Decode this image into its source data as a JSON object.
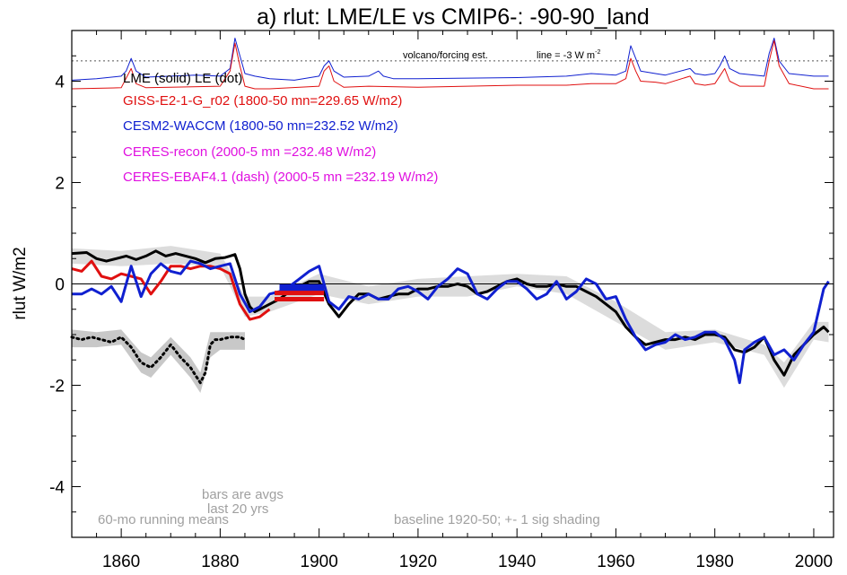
{
  "chart_data": {
    "type": "line",
    "title": "a) rlut: LME/LE vs CMIP6-: -90-90_land",
    "ylabel": "rlut W/m2",
    "xlabel": "",
    "xlim": [
      1850,
      2004
    ],
    "ylim": [
      -5,
      5
    ],
    "x_ticks": [
      1860,
      1880,
      1900,
      1920,
      1940,
      1960,
      1980,
      2000
    ],
    "y_ticks": [
      -4,
      -2,
      0,
      2,
      4
    ],
    "zero_line": 0,
    "legend": [
      {
        "text": "LME (solid)   LE (dot)",
        "color": "#000000"
      },
      {
        "text": "GISS-E2-1-G_r02 (1800-50 mn=229.65 W/m2)",
        "color": "#e01010"
      },
      {
        "text": "CESM2-WACCM (1800-50 mn=232.52 W/m2)",
        "color": "#1020d0"
      },
      {
        "text": "CERES-recon (2000-5 mn =232.48 W/m2)",
        "color": "#e010e0"
      },
      {
        "text": "CERES-EBAF4.1 (dash) (2000-5 mn =232.19 W/m2)",
        "color": "#e010e0"
      }
    ],
    "annotations": {
      "volcano": "volcano/forcing est.",
      "volcano_line": "line = -3 W m",
      "volcano_line_sup": "-2",
      "bars": "bars are avgs",
      "bars2": "last 20 yrs",
      "running": "60-mo running means",
      "baseline": "baseline 1920-50; +- 1 sig shading"
    },
    "volcano_ref_level": 4.4,
    "series": [
      {
        "name": "LME (solid)",
        "color": "#000000",
        "style": "solid",
        "x": [
          1850,
          1853,
          1855,
          1857,
          1859,
          1861,
          1863,
          1865,
          1867,
          1869,
          1871,
          1873,
          1875,
          1877,
          1879,
          1881,
          1883,
          1884,
          1885,
          1886,
          1887,
          1888,
          1890,
          1892,
          1894,
          1896,
          1898,
          1900,
          1902,
          1904,
          1906,
          1908,
          1910,
          1912,
          1914,
          1916,
          1918,
          1920,
          1922,
          1924,
          1926,
          1928,
          1930,
          1932,
          1934,
          1936,
          1938,
          1940,
          1942,
          1944,
          1946,
          1948,
          1950,
          1952,
          1954,
          1956,
          1958,
          1960,
          1962,
          1964,
          1966,
          1968,
          1970,
          1972,
          1974,
          1976,
          1978,
          1980,
          1982,
          1984,
          1986,
          1988,
          1990,
          1992,
          1994,
          1996,
          1998,
          2000,
          2002,
          2003
        ],
        "values": [
          0.6,
          0.62,
          0.5,
          0.45,
          0.5,
          0.55,
          0.48,
          0.55,
          0.65,
          0.55,
          0.6,
          0.55,
          0.5,
          0.42,
          0.5,
          0.52,
          0.58,
          0.3,
          -0.2,
          -0.45,
          -0.55,
          -0.5,
          -0.4,
          -0.3,
          -0.15,
          -0.05,
          0.05,
          0.05,
          -0.4,
          -0.65,
          -0.4,
          -0.2,
          -0.2,
          -0.3,
          -0.25,
          -0.2,
          -0.2,
          -0.1,
          -0.1,
          -0.05,
          -0.05,
          0.0,
          -0.05,
          -0.2,
          -0.15,
          -0.05,
          0.05,
          0.1,
          0.0,
          -0.05,
          -0.05,
          0.0,
          -0.05,
          -0.05,
          -0.15,
          -0.25,
          -0.4,
          -0.55,
          -0.85,
          -1.05,
          -1.2,
          -1.15,
          -1.1,
          -1.1,
          -1.05,
          -1.1,
          -1.0,
          -1.0,
          -1.05,
          -1.3,
          -1.35,
          -1.25,
          -1.05,
          -1.5,
          -1.8,
          -1.4,
          -1.2,
          -1.0,
          -0.85,
          -0.95
        ]
      },
      {
        "name": "LE (dot)",
        "color": "#000000",
        "style": "dot",
        "x": [
          1850,
          1852,
          1854,
          1856,
          1858,
          1860,
          1862,
          1864,
          1866,
          1868,
          1870,
          1872,
          1874,
          1876,
          1877,
          1878,
          1879,
          1880,
          1882,
          1884,
          1885
        ],
        "values": [
          -1.05,
          -1.1,
          -1.05,
          -1.1,
          -1.15,
          -1.05,
          -1.25,
          -1.55,
          -1.65,
          -1.45,
          -1.2,
          -1.45,
          -1.65,
          -1.95,
          -1.75,
          -1.2,
          -1.1,
          -1.1,
          -1.05,
          -1.05,
          -1.1
        ]
      },
      {
        "name": "GISS-E2-1-G_r02",
        "color": "#e01010",
        "style": "solid",
        "x": [
          1850,
          1852,
          1854,
          1856,
          1858,
          1860,
          1862,
          1864,
          1866,
          1868,
          1870,
          1872,
          1874,
          1876,
          1878,
          1880,
          1882,
          1884,
          1886,
          1888,
          1890
        ],
        "values": [
          0.3,
          0.25,
          0.45,
          0.15,
          0.1,
          0.2,
          0.15,
          0.1,
          -0.2,
          0.05,
          0.35,
          0.35,
          0.3,
          0.35,
          0.35,
          0.3,
          0.2,
          -0.4,
          -0.7,
          -0.65,
          -0.5
        ]
      },
      {
        "name": "CESM2-WACCM",
        "color": "#1020d0",
        "style": "solid",
        "x": [
          1850,
          1852,
          1854,
          1856,
          1858,
          1860,
          1862,
          1864,
          1866,
          1868,
          1870,
          1872,
          1874,
          1876,
          1878,
          1880,
          1882,
          1884,
          1886,
          1888,
          1890,
          1892,
          1894,
          1896,
          1898,
          1900,
          1902,
          1904,
          1906,
          1908,
          1910,
          1912,
          1914,
          1916,
          1918,
          1920,
          1922,
          1924,
          1926,
          1928,
          1930,
          1932,
          1934,
          1936,
          1938,
          1940,
          1942,
          1944,
          1946,
          1948,
          1950,
          1952,
          1954,
          1956,
          1958,
          1960,
          1962,
          1964,
          1966,
          1968,
          1970,
          1972,
          1974,
          1976,
          1978,
          1980,
          1982,
          1984,
          1985,
          1986,
          1988,
          1990,
          1992,
          1994,
          1996,
          1998,
          2000,
          2002,
          2003
        ],
        "values": [
          -0.2,
          -0.2,
          -0.1,
          -0.2,
          -0.05,
          -0.35,
          0.35,
          -0.25,
          0.2,
          0.4,
          0.25,
          0.2,
          0.45,
          0.4,
          0.3,
          0.35,
          0.4,
          -0.2,
          -0.55,
          -0.45,
          -0.2,
          -0.15,
          -0.05,
          0.1,
          0.25,
          0.35,
          -0.35,
          -0.5,
          -0.25,
          -0.3,
          -0.2,
          -0.3,
          -0.3,
          -0.1,
          -0.05,
          -0.15,
          -0.3,
          -0.05,
          0.1,
          0.3,
          0.2,
          -0.2,
          -0.3,
          -0.1,
          0.05,
          0.05,
          -0.1,
          -0.3,
          -0.2,
          0.05,
          -0.3,
          -0.15,
          0.1,
          0.0,
          -0.3,
          -0.25,
          -0.7,
          -1.05,
          -1.3,
          -1.2,
          -1.15,
          -1.0,
          -1.1,
          -1.05,
          -0.95,
          -0.95,
          -1.1,
          -1.5,
          -1.95,
          -1.3,
          -1.15,
          -1.05,
          -1.4,
          -1.3,
          -1.5,
          -1.2,
          -0.95,
          -0.1,
          0.05
        ]
      },
      {
        "name": "volcano/forcing est. (WACCM)",
        "color": "#1020d0",
        "style": "solid",
        "x": [
          1850,
          1855,
          1860,
          1861,
          1862,
          1863,
          1865,
          1870,
          1875,
          1880,
          1882,
          1883,
          1884,
          1885,
          1887,
          1890,
          1895,
          1900,
          1901,
          1902,
          1903,
          1905,
          1910,
          1912,
          1913,
          1915,
          1920,
          1930,
          1940,
          1950,
          1955,
          1960,
          1962,
          1963,
          1964,
          1965,
          1968,
          1970,
          1975,
          1976,
          1978,
          1980,
          1981,
          1982,
          1983,
          1985,
          1990,
          1991,
          1992,
          1993,
          1995,
          2000,
          2003
        ],
        "values": [
          4.02,
          4.05,
          4.1,
          4.2,
          4.45,
          4.2,
          4.08,
          4.1,
          4.12,
          4.1,
          4.25,
          4.85,
          4.5,
          4.15,
          4.1,
          4.05,
          4.02,
          4.1,
          4.3,
          4.4,
          4.2,
          4.08,
          4.1,
          4.2,
          4.1,
          4.05,
          4.05,
          4.06,
          4.07,
          4.1,
          4.15,
          4.12,
          4.2,
          4.7,
          4.45,
          4.2,
          4.15,
          4.12,
          4.25,
          4.15,
          4.12,
          4.15,
          4.3,
          4.5,
          4.25,
          4.15,
          4.1,
          4.55,
          4.85,
          4.4,
          4.15,
          4.1,
          4.1
        ]
      },
      {
        "name": "volcano/forcing est. (GISS)",
        "color": "#e01010",
        "style": "solid",
        "x": [
          1850,
          1860,
          1862,
          1863,
          1865,
          1870,
          1880,
          1882,
          1883,
          1884,
          1885,
          1887,
          1890,
          1900,
          1901,
          1902,
          1903,
          1905,
          1910,
          1920,
          1930,
          1940,
          1950,
          1955,
          1960,
          1962,
          1963,
          1964,
          1965,
          1968,
          1970,
          1975,
          1976,
          1978,
          1980,
          1982,
          1983,
          1985,
          1990,
          1991,
          1992,
          1993,
          1995,
          2000,
          2003
        ],
        "values": [
          3.85,
          3.87,
          4.25,
          3.95,
          3.87,
          3.88,
          3.9,
          4.2,
          4.75,
          4.3,
          3.9,
          3.85,
          3.85,
          3.9,
          4.2,
          4.3,
          4.0,
          3.88,
          3.9,
          3.88,
          3.9,
          3.92,
          3.92,
          3.95,
          3.95,
          4.05,
          4.45,
          4.2,
          4.0,
          3.98,
          3.95,
          4.1,
          3.95,
          3.92,
          3.95,
          4.25,
          4.0,
          3.9,
          3.9,
          4.4,
          4.8,
          4.3,
          3.95,
          3.85,
          3.85
        ]
      }
    ],
    "shading": [
      {
        "name": "LME sigma",
        "color": "#dcdcdc",
        "x": [
          1850,
          1860,
          1870,
          1880,
          1885,
          1890,
          1900,
          1910,
          1920,
          1930,
          1940,
          1950,
          1960,
          1970,
          1980,
          1990,
          1994,
          2000,
          2003
        ],
        "upper": [
          0.7,
          0.65,
          0.75,
          0.6,
          -0.25,
          -0.25,
          0.2,
          -0.05,
          0.1,
          0.15,
          0.2,
          0.15,
          -0.35,
          -0.95,
          -0.9,
          -1.2,
          -1.55,
          -0.75,
          -0.75
        ],
        "lower": [
          0.4,
          0.35,
          0.4,
          0.35,
          -0.65,
          -0.55,
          -0.2,
          -0.4,
          -0.25,
          -0.25,
          -0.05,
          -0.2,
          -0.75,
          -1.3,
          -1.15,
          -1.4,
          -2.05,
          -1.1,
          -1.15
        ]
      },
      {
        "name": "LE sigma",
        "color": "#c8c8c8",
        "x": [
          1850,
          1855,
          1860,
          1864,
          1866,
          1870,
          1874,
          1876,
          1878,
          1880,
          1885
        ],
        "upper": [
          -0.9,
          -0.95,
          -0.9,
          -1.35,
          -1.45,
          -1.05,
          -1.45,
          -1.75,
          -0.95,
          -0.95,
          -0.95
        ],
        "lower": [
          -1.25,
          -1.25,
          -1.2,
          -1.75,
          -1.85,
          -1.4,
          -1.85,
          -2.15,
          -1.45,
          -1.3,
          -1.3
        ]
      }
    ],
    "bars": [
      {
        "name": "CESM2-WACCM avg",
        "color": "#1020d0",
        "x0": 1892,
        "x1": 1901,
        "value": -0.05
      },
      {
        "name": "CESM2-WACCM avg 2",
        "color": "#1020d0",
        "x0": 1892,
        "x1": 1901,
        "value": -0.1
      },
      {
        "name": "GISS avg",
        "color": "#e01010",
        "x0": 1891,
        "x1": 1901,
        "value": -0.3
      },
      {
        "name": "GISS avg 2",
        "color": "#e01010",
        "x0": 1891,
        "x1": 1901,
        "value": -0.18
      }
    ]
  }
}
